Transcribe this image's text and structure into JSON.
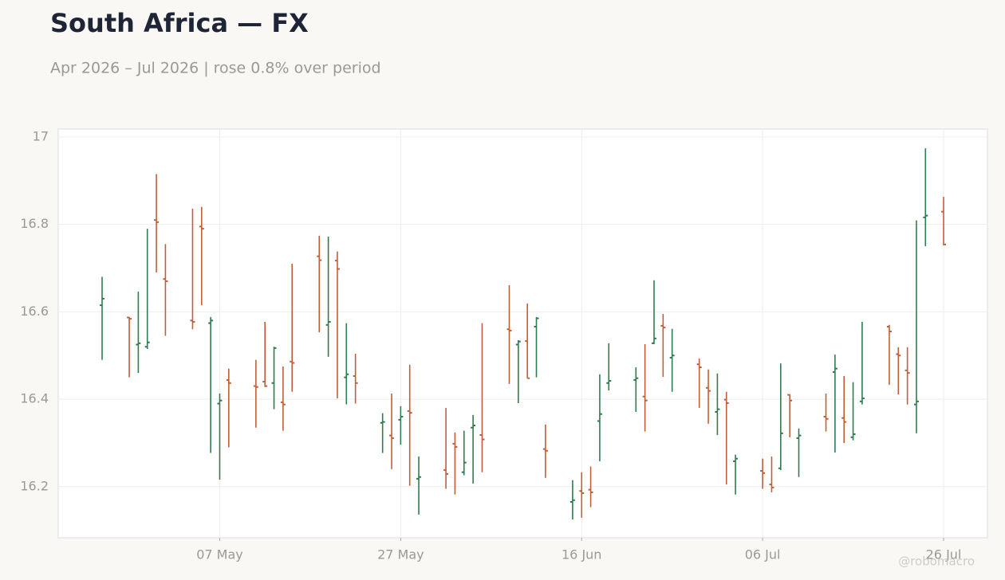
{
  "chart_data": {
    "type": "ohlc",
    "title": "South Africa — FX",
    "subtitle": "Apr 2026 – Jul 2026 | rose 0.8% over period",
    "watermark": "@robomacro",
    "x": [
      "24 Apr",
      "27 Apr",
      "28 Apr",
      "29 Apr",
      "30 Apr",
      "01 May",
      "04 May",
      "05 May",
      "06 May",
      "07 May",
      "08 May",
      "11 May",
      "12 May",
      "13 May",
      "14 May",
      "15 May",
      "18 May",
      "19 May",
      "20 May",
      "21 May",
      "22 May",
      "25 May",
      "26 May",
      "27 May",
      "28 May",
      "29 May",
      "01 Jun",
      "02 Jun",
      "03 Jun",
      "04 Jun",
      "05 Jun",
      "08 Jun",
      "09 Jun",
      "10 Jun",
      "11 Jun",
      "12 Jun",
      "15 Jun",
      "16 Jun",
      "17 Jun",
      "18 Jun",
      "19 Jun",
      "22 Jun",
      "23 Jun",
      "24 Jun",
      "25 Jun",
      "26 Jun",
      "29 Jun",
      "30 Jun",
      "01 Jul",
      "02 Jul",
      "03 Jul",
      "06 Jul",
      "07 Jul",
      "08 Jul",
      "09 Jul",
      "10 Jul",
      "13 Jul",
      "14 Jul",
      "15 Jul",
      "16 Jul",
      "17 Jul",
      "20 Jul",
      "21 Jul",
      "22 Jul",
      "23 Jul",
      "24 Jul",
      "26 Jul"
    ],
    "open": [
      16.615,
      16.587,
      16.525,
      16.52,
      16.81,
      16.675,
      16.58,
      16.795,
      16.574,
      16.39,
      16.444,
      16.43,
      16.44,
      16.437,
      16.393,
      16.486,
      16.727,
      16.57,
      16.717,
      16.45,
      16.453,
      16.346,
      16.317,
      16.353,
      16.373,
      16.218,
      16.238,
      16.298,
      16.233,
      16.335,
      16.318,
      16.56,
      16.525,
      16.533,
      16.566,
      16.286,
      16.165,
      16.19,
      16.193,
      16.35,
      16.437,
      16.444,
      16.406,
      16.528,
      16.568,
      16.495,
      16.48,
      16.426,
      16.371,
      16.399,
      16.258,
      16.236,
      16.205,
      16.242,
      16.41,
      16.311,
      16.36,
      16.462,
      16.357,
      16.313,
      16.395,
      16.566,
      16.503,
      16.466,
      16.388,
      16.816,
      16.829
    ],
    "high": [
      16.68,
      16.588,
      16.646,
      16.79,
      16.915,
      16.755,
      16.836,
      16.84,
      16.588,
      16.413,
      16.47,
      16.49,
      16.577,
      16.52,
      16.475,
      16.71,
      16.774,
      16.772,
      16.738,
      16.574,
      16.504,
      16.368,
      16.413,
      16.384,
      16.479,
      16.269,
      16.38,
      16.324,
      16.328,
      16.364,
      16.574,
      16.661,
      16.535,
      16.619,
      16.588,
      16.342,
      16.215,
      16.233,
      16.246,
      16.457,
      16.528,
      16.473,
      16.526,
      16.672,
      16.595,
      16.561,
      16.493,
      16.468,
      16.459,
      16.417,
      16.273,
      16.264,
      16.269,
      16.482,
      16.411,
      16.333,
      16.413,
      16.502,
      16.453,
      16.439,
      16.577,
      16.57,
      16.519,
      16.519,
      16.809,
      16.974,
      16.863
    ],
    "low": [
      16.49,
      16.45,
      16.46,
      16.515,
      16.69,
      16.545,
      16.56,
      16.615,
      16.277,
      16.216,
      16.29,
      16.335,
      16.428,
      16.377,
      16.328,
      16.417,
      16.553,
      16.497,
      16.402,
      16.388,
      16.39,
      16.277,
      16.24,
      16.296,
      16.202,
      16.136,
      16.195,
      16.182,
      16.226,
      16.207,
      16.233,
      16.435,
      16.391,
      16.448,
      16.45,
      16.22,
      16.125,
      16.129,
      16.153,
      16.258,
      16.42,
      16.371,
      16.326,
      16.526,
      16.451,
      16.417,
      16.38,
      16.344,
      16.318,
      16.205,
      16.182,
      16.195,
      16.187,
      16.238,
      16.313,
      16.222,
      16.326,
      16.278,
      16.3,
      16.306,
      16.388,
      16.433,
      16.411,
      16.388,
      16.322,
      16.75,
      16.752
    ],
    "close": [
      16.63,
      16.584,
      16.528,
      16.53,
      16.805,
      16.67,
      16.577,
      16.79,
      16.58,
      16.397,
      16.437,
      16.428,
      16.43,
      16.517,
      16.388,
      16.483,
      16.718,
      16.577,
      16.698,
      16.457,
      16.437,
      16.348,
      16.311,
      16.36,
      16.369,
      16.222,
      16.229,
      16.291,
      16.255,
      16.34,
      16.308,
      16.557,
      16.532,
      16.448,
      16.585,
      16.282,
      16.169,
      16.185,
      16.187,
      16.366,
      16.442,
      16.448,
      16.397,
      16.539,
      16.564,
      16.5,
      16.473,
      16.419,
      16.377,
      16.391,
      16.264,
      16.231,
      16.198,
      16.322,
      16.397,
      16.317,
      16.355,
      16.47,
      16.348,
      16.32,
      16.402,
      16.555,
      16.5,
      16.46,
      16.395,
      16.82,
      16.754
    ],
    "up_color": "#2e7d4f",
    "down_color": "#c0603a",
    "ylim": [
      16.083,
      17.018
    ],
    "yticks": [
      16.2,
      16.4,
      16.6,
      16.8,
      17
    ],
    "xticks": [
      "07 May",
      "27 May",
      "16 Jun",
      "06 Jul",
      "26 Jul"
    ],
    "grid": true
  }
}
